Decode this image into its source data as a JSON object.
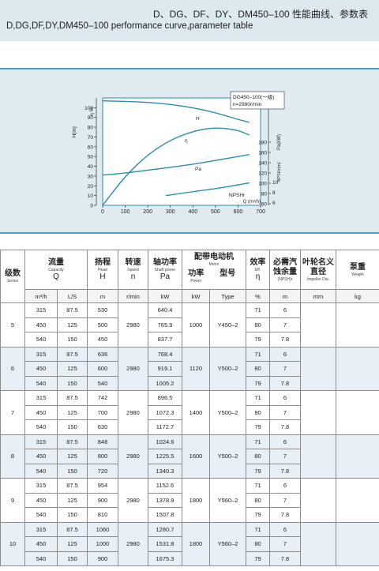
{
  "header": {
    "title_cn": "D、DG、DF、DY、DM450–100 性能曲线、参数表",
    "title_en": "D,DG,DF,DY,DM450–100 performance curve,parameter table"
  },
  "chart_data": {
    "type": "line",
    "title": "DG450–100(一级)",
    "subtitle": "n=2980r/min",
    "xlabel": "Q (m³/h)",
    "ylabel_left": "H(m)",
    "ylabel_left2": "η %",
    "ylabel_right": "Pa(kW)",
    "ylabel_right2": "NPSHr(m)",
    "xlim": [
      0,
      700
    ],
    "xticks": [
      "0",
      "100",
      "200",
      "300",
      "400",
      "500",
      "600",
      "700"
    ],
    "left_ticks": [
      "100",
      "90",
      "80",
      "70",
      "60",
      "50",
      "40",
      "30",
      "20",
      "10",
      "0"
    ],
    "right_ticks": [
      "180",
      "160",
      "140",
      "120",
      "100",
      "80",
      "60"
    ],
    "right_npsh_ticks": [
      "10",
      "8",
      "6"
    ],
    "series": [
      {
        "name": "H",
        "x": [
          0,
          100,
          200,
          300,
          400,
          500,
          600,
          650
        ],
        "y": [
          107,
          106.5,
          105.5,
          103.5,
          100,
          95,
          88,
          85
        ]
      },
      {
        "name": "η",
        "x": [
          0,
          100,
          200,
          300,
          400,
          500,
          600,
          650
        ],
        "y": [
          0,
          30,
          52,
          67,
          76,
          80,
          77,
          72
        ]
      },
      {
        "name": "Pa",
        "x": [
          0,
          100,
          200,
          300,
          400,
          500,
          600,
          650
        ],
        "y": [
          31,
          33,
          36,
          39,
          42,
          46,
          50,
          52
        ]
      },
      {
        "name": "NPSHr",
        "x": [
          280,
          400,
          500,
          600,
          650
        ],
        "y": [
          10,
          14,
          17,
          21,
          23
        ]
      }
    ]
  },
  "table": {
    "headers": {
      "series": {
        "cn": "级数",
        "en": "Series"
      },
      "capacity": {
        "cn": "流量",
        "en": "Capacity",
        "sym": "Q"
      },
      "head": {
        "cn": "扬程",
        "en": "Head",
        "sym": "H"
      },
      "speed": {
        "cn": "转速",
        "en": "Speed",
        "sym": "n"
      },
      "shaft": {
        "cn": "轴功率",
        "en": "Shaft power",
        "sym": "Pa"
      },
      "motor": {
        "cn": "配带电动机",
        "en": "Motor"
      },
      "power": {
        "cn": "功率",
        "en": "Power"
      },
      "type": {
        "cn": "型号",
        "en": "Type"
      },
      "eff": {
        "cn": "效率",
        "en": "Eff.",
        "sym": "η"
      },
      "npsh": {
        "cn": "必需汽蚀余量",
        "sym": "(NPSH)r"
      },
      "impeller": {
        "cn": "叶轮名义直径",
        "en": "Impeller Dia."
      },
      "weight": {
        "cn": "泵重",
        "en": "Weight"
      }
    },
    "units": [
      "m³/h",
      "L/S",
      "m",
      "r/min",
      "kW",
      "kW",
      "Type",
      "%",
      "m",
      "mm",
      "kg"
    ],
    "groups": [
      {
        "series": "5",
        "speed": "2980",
        "power": "1000",
        "type": "Y450–2",
        "rows": [
          [
            "315",
            "87.5",
            "530",
            "640.4",
            "71",
            "6"
          ],
          [
            "450",
            "125",
            "500",
            "765.9",
            "80",
            "7"
          ],
          [
            "540",
            "150",
            "450",
            "837.7",
            "79",
            "7.8"
          ]
        ]
      },
      {
        "series": "6",
        "speed": "2980",
        "power": "1120",
        "type": "Y500–2",
        "rows": [
          [
            "315",
            "87.5",
            "636",
            "768.4",
            "71",
            "6"
          ],
          [
            "450",
            "125",
            "600",
            "919.1",
            "80",
            "7"
          ],
          [
            "540",
            "150",
            "540",
            "1005.2",
            "79",
            "7.8"
          ]
        ]
      },
      {
        "series": "7",
        "speed": "2980",
        "power": "1400",
        "type": "Y500–2",
        "rows": [
          [
            "315",
            "87.5",
            "742",
            "896.5",
            "71",
            "6"
          ],
          [
            "450",
            "125",
            "700",
            "1072.3",
            "80",
            "7"
          ],
          [
            "540",
            "150",
            "630",
            "1172.7",
            "79",
            "7.8"
          ]
        ]
      },
      {
        "series": "8",
        "speed": "2980",
        "power": "1600",
        "type": "Y500–2",
        "rows": [
          [
            "315",
            "87.5",
            "848",
            "1024.6",
            "71",
            "6"
          ],
          [
            "450",
            "125",
            "800",
            "1225.5",
            "80",
            "7"
          ],
          [
            "540",
            "150",
            "720",
            "1340.3",
            "79",
            "7.8"
          ]
        ]
      },
      {
        "series": "9",
        "speed": "2980",
        "power": "1800",
        "type": "Y560–2",
        "rows": [
          [
            "315",
            "87.5",
            "954",
            "1152.6",
            "71",
            "6"
          ],
          [
            "450",
            "125",
            "900",
            "1378.9",
            "80",
            "7"
          ],
          [
            "540",
            "150",
            "810",
            "1507.8",
            "79",
            "7.8"
          ]
        ]
      },
      {
        "series": "10",
        "speed": "2980",
        "power": "1800",
        "type": "Y560–2",
        "rows": [
          [
            "315",
            "87.5",
            "1060",
            "1280.7",
            "71",
            "6"
          ],
          [
            "450",
            "125",
            "1000",
            "1531.8",
            "80",
            "7"
          ],
          [
            "540",
            "150",
            "900",
            "1675.3",
            "79",
            "7.8"
          ]
        ]
      }
    ]
  }
}
